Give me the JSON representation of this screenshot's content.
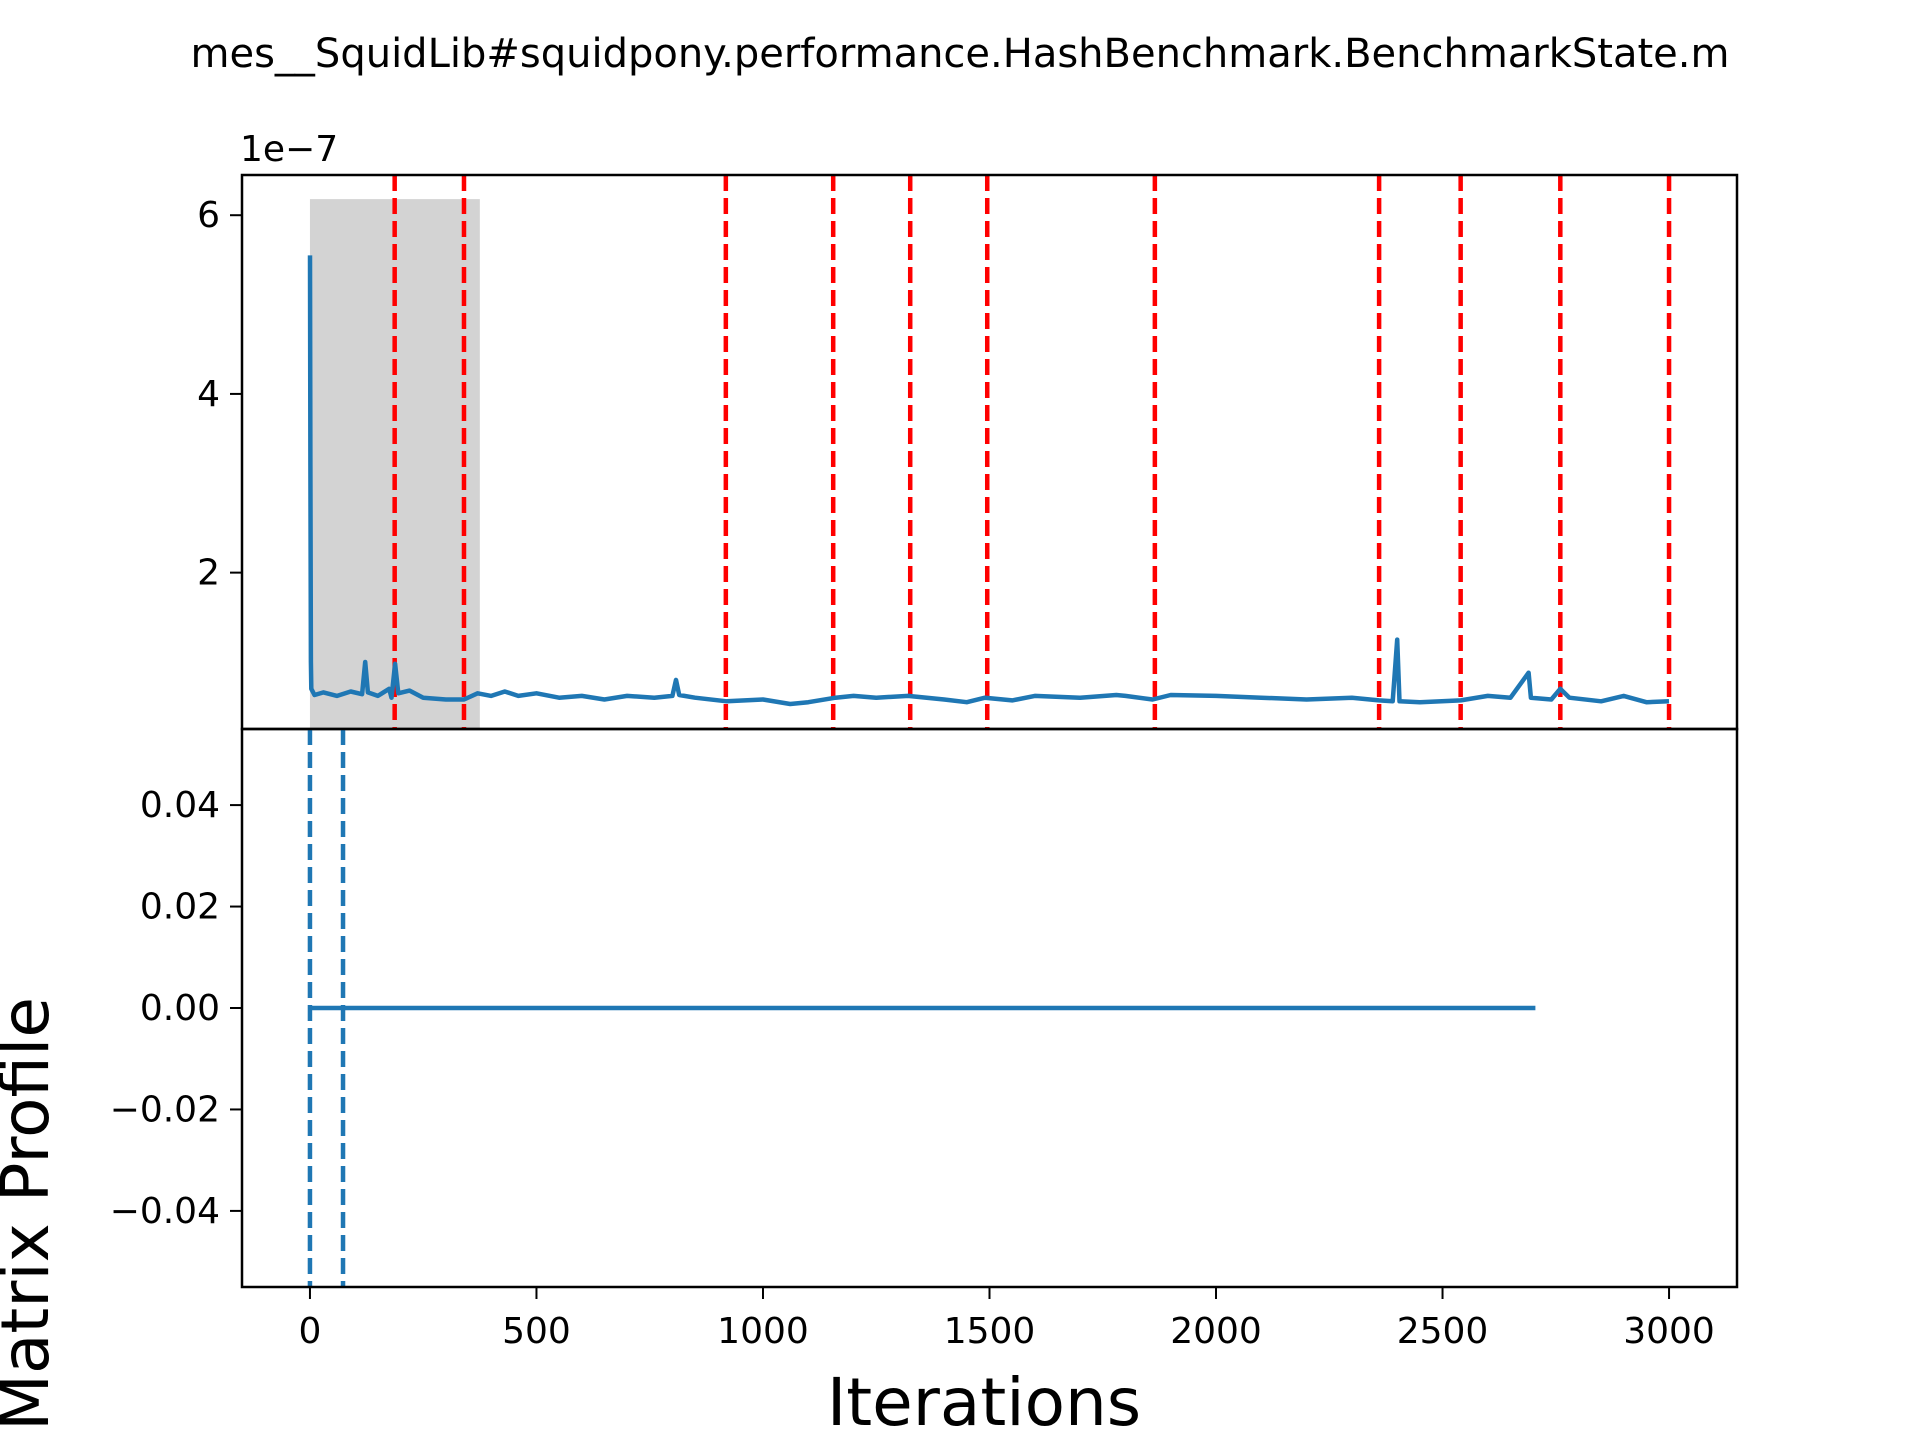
{
  "chart_data": [
    {
      "type": "line",
      "title": "mes__SquidLib#squidpony.performance.HashBenchmark.BenchmarkState.m",
      "xlim": [
        -150,
        3150
      ],
      "ylim": [
        0.25,
        6.45
      ],
      "offset_label": "1e−7",
      "yticks": [
        2,
        4,
        6
      ],
      "ytick_labels": [
        "2",
        "4",
        "6"
      ],
      "grid": false,
      "series": [
        {
          "color": "#1f77b4",
          "points": [
            [
              0,
              5.55
            ],
            [
              1,
              3.2
            ],
            [
              2,
              1.0
            ],
            [
              3,
              0.7
            ],
            [
              10,
              0.63
            ],
            [
              30,
              0.66
            ],
            [
              60,
              0.62
            ],
            [
              90,
              0.67
            ],
            [
              115,
              0.64
            ],
            [
              122,
              1.0
            ],
            [
              128,
              0.66
            ],
            [
              150,
              0.62
            ],
            [
              175,
              0.7
            ],
            [
              180,
              0.6
            ],
            [
              188,
              0.98
            ],
            [
              195,
              0.65
            ],
            [
              220,
              0.68
            ],
            [
              250,
              0.6
            ],
            [
              300,
              0.58
            ],
            [
              340,
              0.58
            ],
            [
              370,
              0.65
            ],
            [
              400,
              0.62
            ],
            [
              430,
              0.67
            ],
            [
              460,
              0.62
            ],
            [
              500,
              0.65
            ],
            [
              550,
              0.6
            ],
            [
              600,
              0.62
            ],
            [
              650,
              0.58
            ],
            [
              700,
              0.62
            ],
            [
              760,
              0.6
            ],
            [
              800,
              0.62
            ],
            [
              808,
              0.8
            ],
            [
              815,
              0.63
            ],
            [
              850,
              0.6
            ],
            [
              920,
              0.56
            ],
            [
              1000,
              0.58
            ],
            [
              1060,
              0.53
            ],
            [
              1100,
              0.55
            ],
            [
              1160,
              0.6
            ],
            [
              1200,
              0.62
            ],
            [
              1250,
              0.6
            ],
            [
              1320,
              0.62
            ],
            [
              1400,
              0.58
            ],
            [
              1450,
              0.55
            ],
            [
              1490,
              0.6
            ],
            [
              1550,
              0.57
            ],
            [
              1600,
              0.62
            ],
            [
              1700,
              0.6
            ],
            [
              1780,
              0.63
            ],
            [
              1800,
              0.62
            ],
            [
              1860,
              0.58
            ],
            [
              1900,
              0.63
            ],
            [
              2000,
              0.62
            ],
            [
              2100,
              0.6
            ],
            [
              2200,
              0.58
            ],
            [
              2300,
              0.6
            ],
            [
              2360,
              0.57
            ],
            [
              2390,
              0.56
            ],
            [
              2400,
              1.25
            ],
            [
              2405,
              0.56
            ],
            [
              2450,
              0.55
            ],
            [
              2540,
              0.57
            ],
            [
              2600,
              0.62
            ],
            [
              2650,
              0.6
            ],
            [
              2690,
              0.88
            ],
            [
              2695,
              0.6
            ],
            [
              2740,
              0.58
            ],
            [
              2760,
              0.7
            ],
            [
              2780,
              0.6
            ],
            [
              2850,
              0.56
            ],
            [
              2900,
              0.62
            ],
            [
              2950,
              0.55
            ],
            [
              3000,
              0.56
            ]
          ]
        }
      ],
      "shaded_regions": [
        {
          "x": [
            0,
            375
          ],
          "y": [
            0.25,
            6.18
          ],
          "color": "#d3d3d3"
        }
      ],
      "vlines": {
        "x": [
          187,
          340,
          918,
          1155,
          1325,
          1495,
          1865,
          2360,
          2540,
          2760,
          3000
        ],
        "color": "#ff0000",
        "style": "dashed"
      }
    },
    {
      "type": "line",
      "xlabel": "Iterations",
      "ylabel": "Matrix Profile",
      "xlim": [
        -150,
        3150
      ],
      "ylim": [
        -0.055,
        0.055
      ],
      "xticks": [
        0,
        500,
        1000,
        1500,
        2000,
        2500,
        3000
      ],
      "xtick_labels": [
        "0",
        "500",
        "1000",
        "1500",
        "2000",
        "2500",
        "3000"
      ],
      "yticks": [
        0.04,
        0.02,
        0.0,
        -0.02,
        -0.04
      ],
      "ytick_labels": [
        "0.04",
        "0.02",
        "0.00",
        "−0.02",
        "−0.04"
      ],
      "grid": false,
      "series": [
        {
          "color": "#1f77b4",
          "points": [
            [
              0,
              0.0
            ],
            [
              2705,
              0.0
            ]
          ]
        }
      ],
      "vlines": {
        "x": [
          0,
          73
        ],
        "color": "#1f77b4",
        "style": "dashed"
      }
    }
  ]
}
